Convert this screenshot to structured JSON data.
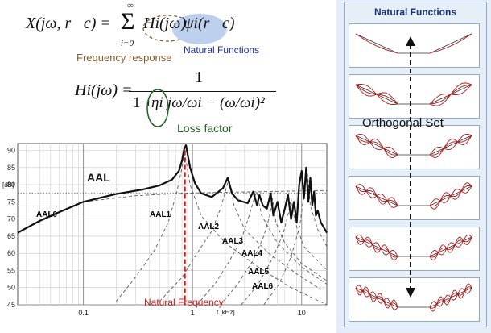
{
  "equation1": {
    "lhs": "X(jω, r⃗c) = ",
    "sum_upper": "∞",
    "sum_symbol": "Σ",
    "sum_lower": "i=0",
    "term_h": "Hi(jω)",
    "term_psi": "ψi(r⃗c)"
  },
  "equation2": {
    "lhs": "Hi(jω) = ",
    "numerator": "1",
    "denominator_a": "1 + ",
    "denominator_eta": "ηi",
    "denominator_b": "jω/ωi − (ω/ωi)²"
  },
  "labels": {
    "frequency_response": "Frequency response",
    "natural_functions_callout": "Natural Functions",
    "loss_factor": "Loss factor",
    "natural_frequency": "Natural Frequency",
    "orthogonal_set": "Orthogonal Set"
  },
  "right_panel": {
    "title": "Natural Functions",
    "mode_count": 6
  },
  "colors": {
    "frequency_response": "#8a5a2b",
    "natural_functions": "#1d2fa0",
    "loss_factor": "#1f5f1f",
    "natural_frequency": "#cc1c1c",
    "psi_highlight": "#bcd0ee",
    "mode_shape": "#b01818"
  },
  "chart_data": {
    "type": "line",
    "x_scale": "log",
    "xlim": [
      0.025,
      17
    ],
    "ylim": [
      45,
      92
    ],
    "ylabel": "[dB]",
    "xlabel": "f [kHz]",
    "x_ticks": [
      0.1,
      1,
      10
    ],
    "x_tick_labels": [
      "0.1",
      "1",
      "10"
    ],
    "y_ticks": [
      45,
      50,
      55,
      60,
      65,
      70,
      75,
      80,
      85,
      90
    ],
    "y_tick_labels": [
      "45",
      "50",
      "55",
      "60",
      "65",
      "70",
      "75",
      "80",
      "85",
      "90"
    ],
    "resonance_marker_x": 0.85,
    "total_series": {
      "name": "AAL",
      "x": [
        0.025,
        0.04,
        0.06,
        0.1,
        0.2,
        0.35,
        0.5,
        0.65,
        0.75,
        0.8,
        0.84,
        0.87,
        0.9,
        0.95,
        1.05,
        1.2,
        1.5,
        1.9,
        2.1,
        2.3,
        2.6,
        3.2,
        3.6,
        3.9,
        4.1,
        4.4,
        4.8,
        5.2,
        5.5,
        6,
        6.5,
        7,
        7.5,
        8,
        8.5,
        9,
        9.5,
        10,
        10.5,
        11,
        11.5,
        12,
        12.5,
        13,
        13.5,
        14,
        15,
        16,
        17
      ],
      "y": [
        66,
        69.5,
        72,
        75,
        77.3,
        78.6,
        79.8,
        81.5,
        84,
        87,
        90.5,
        91.5,
        89,
        85,
        80.5,
        77.5,
        76.4,
        79,
        82,
        77.5,
        75.5,
        74.6,
        78,
        74,
        77,
        74,
        73,
        77.5,
        71,
        75,
        69,
        73,
        77,
        70,
        75,
        69,
        80,
        84,
        76,
        85,
        75,
        82,
        74,
        78,
        71,
        72.5,
        69,
        67.5,
        66
      ]
    },
    "components": [
      {
        "label": "AAL0",
        "x": [
          0.025,
          0.06,
          0.1,
          0.3,
          0.6,
          1,
          2,
          5,
          10,
          17
        ],
        "y": [
          66,
          72,
          75,
          76.8,
          77.3,
          77.6,
          77.8,
          78,
          78.2,
          78.3
        ]
      },
      {
        "label": "AAL1",
        "x": [
          0.2,
          0.3,
          0.45,
          0.6,
          0.72,
          0.8,
          0.85,
          0.95,
          1.2,
          2,
          4,
          8,
          17
        ],
        "y": [
          46,
          53,
          61,
          69,
          78,
          85,
          89,
          80,
          71,
          63,
          56,
          50,
          45
        ]
      },
      {
        "label": "AAL2",
        "x": [
          0.5,
          0.8,
          1.1,
          1.5,
          1.8,
          2,
          2.15,
          2.4,
          3,
          5,
          9,
          15
        ],
        "y": [
          46,
          53,
          60,
          66.5,
          73,
          78,
          82,
          74,
          67,
          60,
          54,
          49.5
        ]
      },
      {
        "label": "AAL3",
        "x": [
          1.1,
          1.6,
          2.2,
          2.8,
          3.3,
          3.6,
          3.85,
          4.3,
          6,
          10,
          17
        ],
        "y": [
          45,
          51,
          58,
          64,
          71,
          75,
          78,
          71,
          63,
          56,
          51
        ]
      },
      {
        "label": "AAL4",
        "x": [
          1.8,
          2.6,
          3.6,
          4.5,
          5.1,
          5.4,
          5.8,
          7,
          10,
          17
        ],
        "y": [
          45,
          51,
          58,
          65,
          71,
          76,
          69,
          63,
          57,
          52
        ]
      },
      {
        "label": "AAL5",
        "x": [
          2.8,
          4,
          5.5,
          6.8,
          7.6,
          8,
          8.7,
          10.5,
          17
        ],
        "y": [
          45,
          51,
          59,
          66,
          72,
          76,
          69,
          62,
          55
        ]
      },
      {
        "label": "AAL6",
        "x": [
          4.5,
          6.2,
          8,
          9.6,
          10.7,
          11.2,
          12,
          14,
          17
        ],
        "y": [
          45,
          51,
          59,
          68,
          79,
          85,
          74,
          67,
          62
        ]
      }
    ]
  }
}
